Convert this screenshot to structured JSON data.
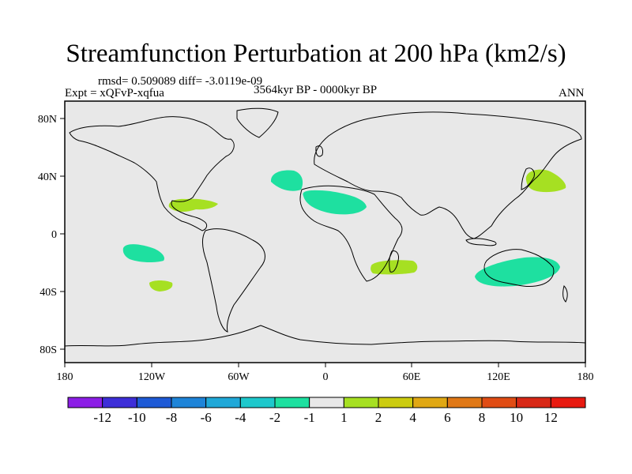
{
  "title": "Streamfunction Perturbation at 200 hPa (km2/s)",
  "stats": "rmsd= 0.509089 diff= -3.0119e-09",
  "experiment": "Expt = xQFvP-xqfua",
  "period": "3564kyr BP - 0000kyr BP",
  "season": "ANN",
  "lat_labels": [
    "80N",
    "40N",
    "0",
    "40S",
    "80S"
  ],
  "lon_labels": [
    "180",
    "120W",
    "60W",
    "0",
    "60E",
    "120E",
    "180"
  ],
  "colorbar": {
    "labels": [
      "-12",
      "-10",
      "-8",
      "-6",
      "-4",
      "-2",
      "-1",
      "1",
      "2",
      "4",
      "6",
      "8",
      "10",
      "12"
    ],
    "colors": [
      "#8c1ee6",
      "#3d2ed8",
      "#1e5ad6",
      "#1e84d8",
      "#20a8d8",
      "#1ec8cc",
      "#1ee0a0",
      "#e8e8e8",
      "#a6e022",
      "#cccc10",
      "#e0a814",
      "#e07816",
      "#e04c14",
      "#d82816",
      "#e81a10"
    ]
  },
  "colors": {
    "positive_fill": "#a6e022",
    "negative_fill": "#1ee0a0",
    "ocean": "#e8e8e8"
  }
}
